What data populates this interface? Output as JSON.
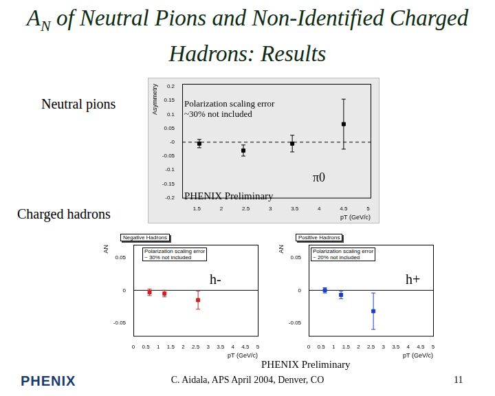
{
  "slide": {
    "title_main": "A",
    "title_sub": "N",
    "title_rest": " of Neutral Pions and Non-Identified Charged Hadrons: Results",
    "labels": [
      "Neutral pions",
      "Charged hadrons"
    ],
    "preliminary": "PHENIX Preliminary",
    "footer": "C. Aidala, APS April 2004, Denver, CO",
    "page": "11",
    "logo": "PHENIX"
  },
  "chart_data": [
    {
      "type": "scatter",
      "note": [
        "Polarization scaling error",
        "~30% not included"
      ],
      "annotation": "PHENIX Preliminary",
      "x_label": "pT (GeV/c)",
      "y_label": "Asymmetry",
      "x": [
        1.55,
        2.45,
        3.45,
        4.5
      ],
      "series": [
        {
          "name": "π0",
          "color": "#000000",
          "marker": "square",
          "values": [
            -0.005,
            -0.03,
            -0.005,
            0.065
          ],
          "errors": [
            0.015,
            0.02,
            0.03,
            0.09
          ]
        }
      ],
      "xlim": [
        1.2,
        5.05
      ],
      "xticks": [
        1.5,
        2,
        2.5,
        3,
        3.5,
        4,
        4.5,
        5
      ],
      "ylim": [
        -0.2,
        0.21
      ],
      "yticks": [
        -0.2,
        -0.15,
        -0.1,
        -0.05,
        {
          "value": 0,
          "label": "-0"
        },
        0.05,
        0.1,
        0.15,
        0.2
      ],
      "grid": false
    },
    {
      "type": "scatter",
      "title": "Negative Hadrons",
      "note": [
        "Polarization scaling error",
        "~ 30% not included"
      ],
      "x_label": "pT (GeV/c)",
      "y_label": "AN",
      "x": [
        0.65,
        1.25,
        2.6
      ],
      "series": [
        {
          "name": "h-",
          "color": "#cc2222",
          "marker": "square",
          "values": [
            -0.003,
            -0.005,
            -0.015
          ],
          "errors": [
            0.005,
            0.005,
            0.014
          ]
        }
      ],
      "xlim": [
        0,
        5
      ],
      "xticks": [
        0,
        0.5,
        1,
        1.5,
        2,
        2.5,
        3,
        3.5,
        4,
        4.5,
        5
      ],
      "ylim": [
        -0.07,
        0.07
      ],
      "yticks": [
        -0.05,
        0,
        0.05
      ],
      "grid": false
    },
    {
      "type": "scatter",
      "title": "Positive Hadrons",
      "note": [
        "Polarization scaling error",
        "~ 20% not included"
      ],
      "x_label": "pT (GeV/c)",
      "y_label": "AN",
      "x": [
        0.65,
        1.3,
        2.6
      ],
      "series": [
        {
          "name": "h+",
          "color": "#1f3fbf",
          "marker": "square",
          "values": [
            0.0,
            -0.007,
            -0.032
          ],
          "errors": [
            0.004,
            0.006,
            0.028
          ]
        }
      ],
      "xlim": [
        0,
        5
      ],
      "xticks": [
        0,
        0.5,
        1,
        1.5,
        2,
        2.5,
        3,
        3.5,
        4,
        4.5,
        5
      ],
      "ylim": [
        -0.07,
        0.07
      ],
      "yticks": [
        -0.05,
        0,
        0.05
      ],
      "grid": false
    }
  ]
}
